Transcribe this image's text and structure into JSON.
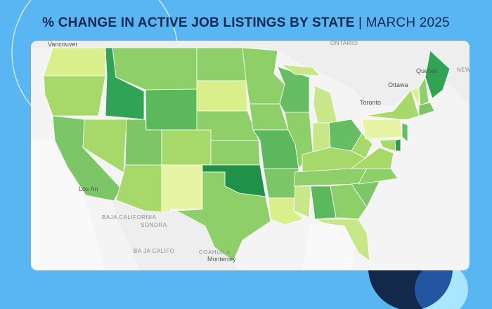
{
  "header": {
    "title": "% CHANGE IN ACTIVE JOB LISTINGS BY STATE",
    "date": "| MARCH 2025"
  },
  "map": {
    "places": [
      "Vancouver",
      "ONTARIO",
      "Quebec",
      "Ottawa",
      "Toronto",
      "NEW BRUNSWI",
      "Los An",
      "BAJA CALIFORNIA",
      "SONORA",
      "COAHUILA",
      "Monterrey",
      "BA JA CALIFO"
    ],
    "regions": [
      {
        "color": "#d9ef8b"
      },
      {
        "color": "#a6d96a"
      },
      {
        "color": "#7cc667"
      },
      {
        "color": "#a6d96a"
      },
      {
        "color": "#31a354"
      },
      {
        "color": "#8fcf6a"
      },
      {
        "color": "#5cb85c"
      },
      {
        "color": "#7cc667"
      },
      {
        "color": "#a6d96a"
      },
      {
        "color": "#a6d96a"
      },
      {
        "color": "#e6f4a3"
      },
      {
        "color": "#8fcf6a"
      },
      {
        "color": "#d9ef8b"
      },
      {
        "color": "#8fcf6a"
      },
      {
        "color": "#8fcf6a"
      },
      {
        "color": "#1f9148"
      },
      {
        "color": "#8fcf6a"
      },
      {
        "color": "#8fcf6a"
      },
      {
        "color": "#8fcf6a"
      },
      {
        "color": "#5cb85c"
      },
      {
        "color": "#7cc667"
      },
      {
        "color": "#d9ef8b"
      },
      {
        "color": "#66bd63"
      },
      {
        "color": "#8fcf6a"
      },
      {
        "color": "#c7e789"
      },
      {
        "color": "#c7e789"
      },
      {
        "color": "#c7e789"
      },
      {
        "color": "#66bd63"
      },
      {
        "color": "#a6d96a"
      },
      {
        "color": "#8fcf6a"
      },
      {
        "color": "#c7e789"
      },
      {
        "color": "#5cb85c"
      },
      {
        "color": "#8fcf6a"
      },
      {
        "color": "#c7e789"
      },
      {
        "color": "#7cc667"
      },
      {
        "color": "#8fcf6a"
      },
      {
        "color": "#a6d96a"
      },
      {
        "color": "#a6d96a"
      },
      {
        "color": "#e6f4a3"
      },
      {
        "color": "#a6d96a"
      },
      {
        "color": "#31a354"
      },
      {
        "color": "#d9ef8b"
      },
      {
        "color": "#8fcf6a"
      },
      {
        "color": "#7cc667"
      },
      {
        "color": "#66bd63"
      },
      {
        "color": "#a6d96a"
      },
      {
        "color": "#2f9a4e"
      }
    ]
  }
}
